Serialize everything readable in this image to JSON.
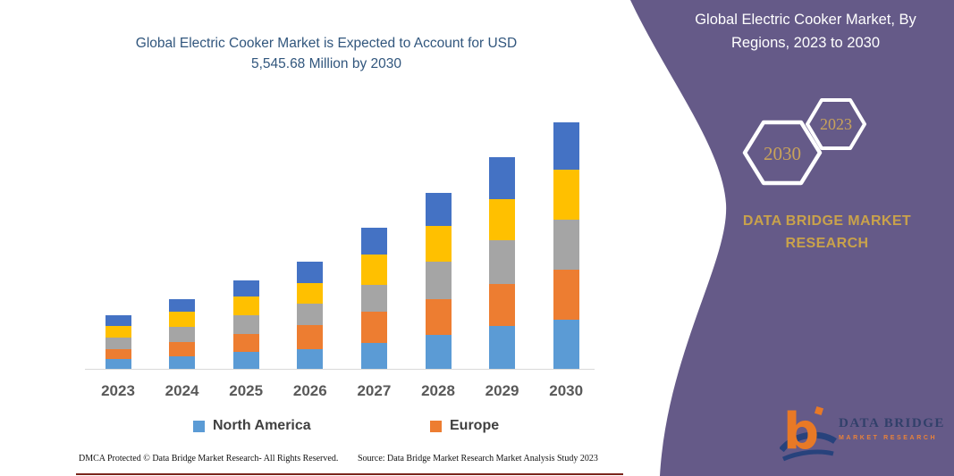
{
  "chart_title": {
    "line1": "Global Electric Cooker Market is Expected to Account for USD",
    "line2": "5,545.68 Million by 2030"
  },
  "chart_data": {
    "type": "bar",
    "stacked": true,
    "title": "Global Electric Cooker Market is Expected to Account for USD 5,545.68 Million by 2030",
    "unit": "USD Million",
    "categories": [
      "2023",
      "2024",
      "2025",
      "2026",
      "2027",
      "2028",
      "2029",
      "2030"
    ],
    "series": [
      {
        "name": "North America",
        "color": "#5b9bd5",
        "values": [
          221.0,
          281.3,
          382.0,
          442.0,
          583.0,
          764.0,
          965.0,
          1105.1
        ]
      },
      {
        "name": "Europe",
        "color": "#ed7d31",
        "values": [
          221.0,
          321.5,
          402.0,
          543.0,
          703.0,
          804.0,
          944.0,
          1125.2
        ]
      },
      {
        "name": "",
        "color": "#a5a5a5",
        "values": [
          261.2,
          341.6,
          422.0,
          482.2,
          603.0,
          844.0,
          985.0,
          1125.2
        ]
      },
      {
        "name": "",
        "color": "#ffc000",
        "values": [
          261.2,
          341.6,
          422.0,
          462.1,
          683.2,
          804.0,
          924.3,
          1125.2
        ]
      },
      {
        "name": "",
        "color": "#4472c4",
        "values": [
          241.1,
          281.3,
          362.0,
          482.2,
          603.0,
          743.4,
          944.0,
          1065.0
        ]
      }
    ],
    "totals": [
      1205.5,
      1567.3,
      1990.0,
      2411.5,
      3175.2,
      3959.4,
      4762.3,
      5545.68
    ],
    "legend_entries": [
      "North America",
      "Europe"
    ],
    "legend_position": "bottom",
    "grid": false,
    "y_axis_visible": false
  },
  "legend": {
    "items": [
      {
        "label": "North America",
        "color": "#5b9bd5"
      },
      {
        "label": "Europe",
        "color": "#ed7d31"
      }
    ]
  },
  "footer": {
    "left": "DMCA Protected © Data Bridge Market Research-  All Rights Reserved.",
    "right": "Source: Data Bridge Market Research  Market Analysis Study 2023"
  },
  "side_panel": {
    "title_line1": "Global Electric Cooker Market, By",
    "title_line2": "Regions, 2023 to 2030",
    "hexagons": [
      {
        "label": "2030"
      },
      {
        "label": "2023"
      }
    ],
    "brand_line1": "DATA BRIDGE MARKET",
    "brand_line2": "RESEARCH",
    "logo": {
      "monogram": "b",
      "name": "DATA BRIDGE",
      "tagline": "MARKET RESEARCH"
    },
    "colors": {
      "panel_purple": "#655a88",
      "accent_gold": "#c9a24b"
    }
  }
}
